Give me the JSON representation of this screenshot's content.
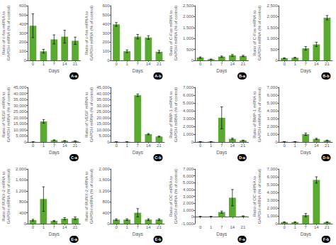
{
  "chart_data": [
    {
      "type": "bar",
      "annotation": "A-a",
      "xlabel": "Days",
      "ylabel": "Ratio of c-fos mRNA to\nGAPDH mRNA (% of control)",
      "categories": [
        "0",
        "1",
        "7",
        "14",
        "21"
      ],
      "values": [
        380,
        100,
        230,
        260,
        215
      ],
      "errors": [
        130,
        20,
        50,
        70,
        40
      ],
      "color": "#5aaa32",
      "ylim": [
        0,
        600
      ],
      "yticks": [
        0,
        100,
        200,
        300,
        400,
        500,
        600
      ],
      "grid": false
    },
    {
      "type": "bar",
      "annotation": "A-b",
      "xlabel": "Days",
      "ylabel": "Ratio of c-fos mRNA to\nGAPDH mRNA (% of control)",
      "categories": [
        "0",
        "1",
        "7",
        "14",
        "21"
      ],
      "values": [
        395,
        100,
        260,
        250,
        95
      ],
      "errors": [
        20,
        15,
        25,
        20,
        15
      ],
      "color": "#5aaa32",
      "ylim": [
        0,
        600
      ],
      "yticks": [
        0,
        100,
        200,
        300,
        400,
        500,
        600
      ],
      "grid": false
    },
    {
      "type": "bar",
      "annotation": "B-a",
      "xlabel": "Days",
      "ylabel": "Ratio of C-Fos mRNA to\nGAPDH mRNA (% of control)",
      "categories": [
        "0",
        "1",
        "7",
        "14",
        "21"
      ],
      "values": [
        130,
        50,
        170,
        230,
        200
      ],
      "errors": [
        30,
        10,
        30,
        40,
        30
      ],
      "color": "#5aaa32",
      "ylim": [
        0,
        2500
      ],
      "yticks": [
        0,
        500,
        {
          "value": 1000,
          "label": "1,000"
        },
        {
          "value": 1500,
          "label": "1,500"
        },
        {
          "value": 2000,
          "label": "2,000"
        },
        {
          "value": 2500,
          "label": "2,500"
        }
      ],
      "grid": false
    },
    {
      "type": "bar",
      "annotation": "B-b",
      "xlabel": "Days",
      "ylabel": "Ratio of C-Fos mRNA to\nGAPDH mRNA (% of control)",
      "categories": [
        "0",
        "1",
        "7",
        "14",
        "21"
      ],
      "values": [
        100,
        120,
        550,
        730,
        1950
      ],
      "errors": [
        20,
        20,
        80,
        100,
        100
      ],
      "color": "#5aaa32",
      "ylim": [
        0,
        2500
      ],
      "yticks": [
        0,
        500,
        {
          "value": 1000,
          "label": "1,000"
        },
        {
          "value": 1500,
          "label": "1,500"
        },
        {
          "value": 2000,
          "label": "2,000"
        },
        {
          "value": 2500,
          "label": "2,500"
        }
      ],
      "grid": false
    },
    {
      "type": "bar",
      "annotation": "C-a",
      "xlabel": "Days",
      "ylabel": "Ratio of VEGF mRNA to\nGAPDH mRNA (% of control)",
      "categories": [
        "0",
        "1",
        "7",
        "14",
        "21"
      ],
      "values": [
        200,
        17000,
        1500,
        1000,
        800
      ],
      "errors": [
        50,
        1500,
        300,
        200,
        150
      ],
      "color": "#5aaa32",
      "ylim": [
        0,
        45000
      ],
      "yticks": [
        0,
        {
          "value": 5000,
          "label": "5,000"
        },
        {
          "value": 10000,
          "label": "10,000"
        },
        {
          "value": 15000,
          "label": "15,000"
        },
        {
          "value": 20000,
          "label": "20,000"
        },
        {
          "value": 25000,
          "label": "25,000"
        },
        {
          "value": 30000,
          "label": "30,000"
        },
        {
          "value": 35000,
          "label": "35,000"
        },
        {
          "value": 40000,
          "label": "40,000"
        },
        {
          "value": 45000,
          "label": "45,000"
        }
      ],
      "grid": false
    },
    {
      "type": "bar",
      "annotation": "C-b",
      "xlabel": "Days",
      "ylabel": "Ratio of VEGF mRNA to\nGAPDH mRNA (% of control)",
      "categories": [
        "0",
        "1",
        "7",
        "14",
        "21"
      ],
      "values": [
        200,
        200,
        38500,
        6500,
        4500
      ],
      "errors": [
        50,
        50,
        1000,
        500,
        400
      ],
      "color": "#5aaa32",
      "ylim": [
        0,
        45000
      ],
      "yticks": [
        0,
        {
          "value": 5000,
          "label": "5,000"
        },
        {
          "value": 10000,
          "label": "10,000"
        },
        {
          "value": 15000,
          "label": "15,000"
        },
        {
          "value": 20000,
          "label": "20,000"
        },
        {
          "value": 25000,
          "label": "25,000"
        },
        {
          "value": 30000,
          "label": "30,000"
        },
        {
          "value": 35000,
          "label": "35,000"
        },
        {
          "value": 40000,
          "label": "40,000"
        },
        {
          "value": 45000,
          "label": "45,000"
        }
      ],
      "grid": false
    },
    {
      "type": "bar",
      "annotation": "D-a",
      "xlabel": "Days",
      "ylabel": "Ratio of BMP-1 mRNA to\nGAPDH mRNA (% of control)",
      "categories": [
        "0",
        "1",
        "7",
        "14",
        "21"
      ],
      "values": [
        50,
        50,
        3100,
        400,
        200
      ],
      "errors": [
        10,
        10,
        1400,
        100,
        50
      ],
      "color": "#5aaa32",
      "ylim": [
        0,
        7000
      ],
      "yticks": [
        0,
        {
          "value": 1000,
          "label": "1,000"
        },
        {
          "value": 2000,
          "label": "2,000"
        },
        {
          "value": 3000,
          "label": "3,000"
        },
        {
          "value": 4000,
          "label": "4,000"
        },
        {
          "value": 5000,
          "label": "5,000"
        },
        {
          "value": 6000,
          "label": "6,000"
        },
        {
          "value": 7000,
          "label": "7,000"
        }
      ],
      "grid": false
    },
    {
      "type": "bar",
      "annotation": "D-b",
      "xlabel": "Days",
      "ylabel": "Ratio of BMP-1 mRNA to\nGAPDH mRNA (% of control)",
      "categories": [
        "0",
        "1",
        "7",
        "14",
        "21"
      ],
      "values": [
        50,
        50,
        1000,
        400,
        200
      ],
      "errors": [
        10,
        10,
        150,
        80,
        50
      ],
      "color": "#5aaa32",
      "ylim": [
        0,
        7000
      ],
      "yticks": [
        0,
        {
          "value": 1000,
          "label": "1,000"
        },
        {
          "value": 2000,
          "label": "2,000"
        },
        {
          "value": 3000,
          "label": "3,000"
        },
        {
          "value": 4000,
          "label": "4,000"
        },
        {
          "value": 5000,
          "label": "5,000"
        },
        {
          "value": 6000,
          "label": "6,000"
        },
        {
          "value": 7000,
          "label": "7,000"
        }
      ],
      "grid": false
    },
    {
      "type": "bar",
      "annotation": "E-a",
      "xlabel": "Days",
      "ylabel": "Ratio of RUNX-2 mRNA to\nGAPDH mRNA (% of control)",
      "categories": [
        "0",
        "1",
        "7",
        "14",
        "21"
      ],
      "values": [
        130,
        900,
        100,
        180,
        200
      ],
      "errors": [
        30,
        450,
        20,
        40,
        50
      ],
      "color": "#5aaa32",
      "ylim": [
        0,
        2000
      ],
      "yticks": [
        0,
        400,
        800,
        {
          "value": 1200,
          "label": "1,200"
        },
        {
          "value": 1600,
          "label": "1,600"
        },
        {
          "value": 2000,
          "label": "2,000"
        }
      ],
      "grid": false
    },
    {
      "type": "bar",
      "annotation": "E-b",
      "xlabel": "Days",
      "ylabel": "Ratio of RUNX-2 mRNA to\nGAPDH mRNA (% of control)",
      "categories": [
        "0",
        "1",
        "7",
        "14",
        "21"
      ],
      "values": [
        150,
        150,
        400,
        150,
        150
      ],
      "errors": [
        30,
        30,
        150,
        30,
        30
      ],
      "color": "#5aaa32",
      "ylim": [
        0,
        2000
      ],
      "yticks": [
        0,
        400,
        800,
        {
          "value": 1200,
          "label": "1,200"
        },
        {
          "value": 1600,
          "label": "1,600"
        },
        {
          "value": 2000,
          "label": "2,000"
        }
      ],
      "grid": false
    },
    {
      "type": "bar",
      "annotation": "F-a",
      "xlabel": "Days",
      "ylabel": "Ratio of OC mRNA to\nGAPDH mRNA (% of control)",
      "categories": [
        "0",
        "1",
        "7",
        "14",
        "21"
      ],
      "values": [
        50,
        50,
        700,
        2800,
        100
      ],
      "errors": [
        20,
        20,
        150,
        1200,
        50
      ],
      "color": "#5aaa32",
      "ylim": [
        -1000,
        7000
      ],
      "yticks": [
        {
          "value": -1000,
          "label": "-1,000"
        },
        0,
        {
          "value": 1000,
          "label": "1,000"
        },
        {
          "value": 2000,
          "label": "2,000"
        },
        {
          "value": 3000,
          "label": "3,000"
        },
        {
          "value": 4000,
          "label": "4,000"
        },
        {
          "value": 5000,
          "label": "5,000"
        },
        {
          "value": 6000,
          "label": "6,000"
        },
        {
          "value": 7000,
          "label": "7,000"
        }
      ],
      "grid": false
    },
    {
      "type": "bar",
      "annotation": "F-b",
      "xlabel": "Days",
      "ylabel": "Ratio of OC mRNA to\nGAPDH mRNA (% of control)",
      "categories": [
        "0",
        "1",
        "7",
        "14",
        "21"
      ],
      "values": [
        200,
        200,
        1100,
        5600,
        200
      ],
      "errors": [
        50,
        50,
        200,
        400,
        50
      ],
      "color": "#5aaa32",
      "ylim": [
        0,
        7000
      ],
      "yticks": [
        0,
        {
          "value": 1000,
          "label": "1,000"
        },
        {
          "value": 2000,
          "label": "2,000"
        },
        {
          "value": 3000,
          "label": "3,000"
        },
        {
          "value": 4000,
          "label": "4,000"
        },
        {
          "value": 5000,
          "label": "5,000"
        },
        {
          "value": 6000,
          "label": "6,000"
        },
        {
          "value": 7000,
          "label": "7,000"
        }
      ],
      "grid": false
    }
  ]
}
